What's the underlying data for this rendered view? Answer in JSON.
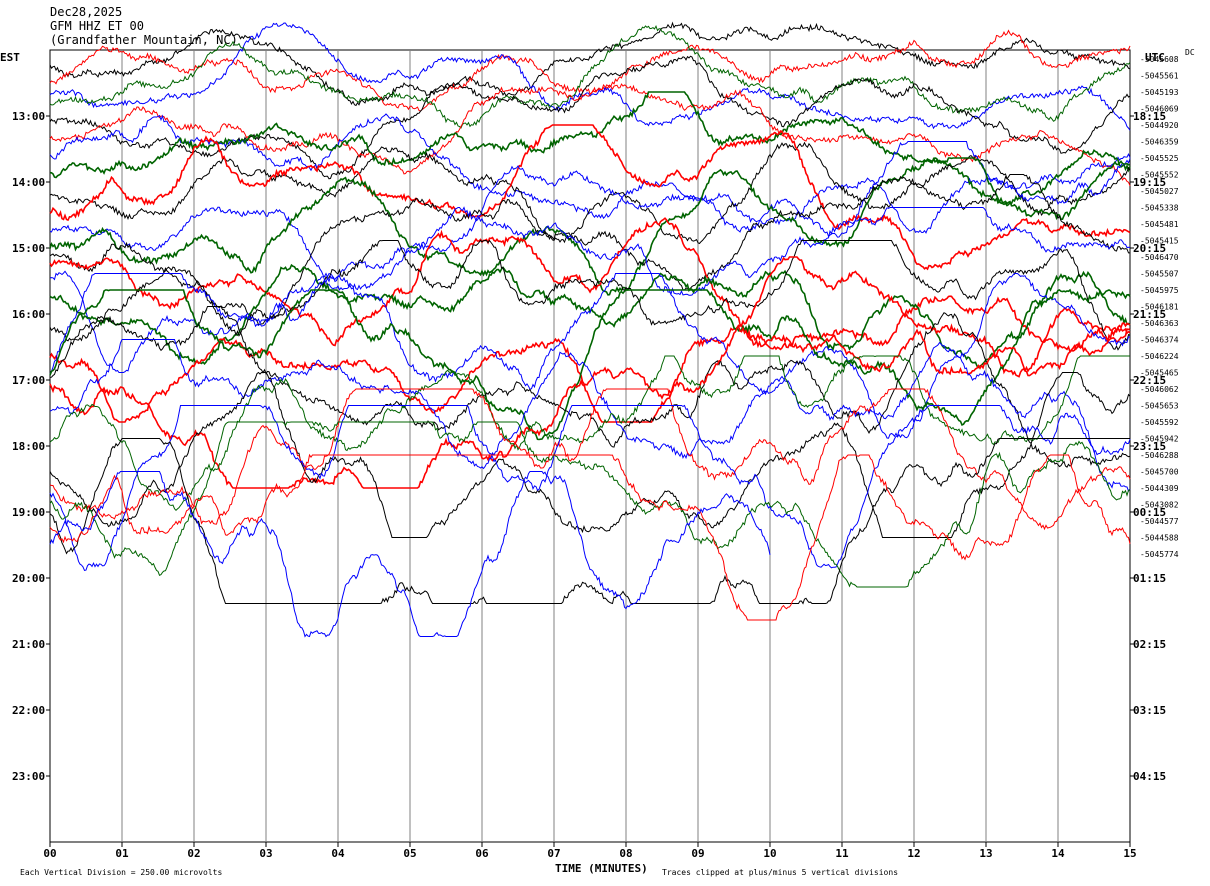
{
  "header": {
    "date": "Dec28,2025",
    "channel": "GFM HHZ ET 00",
    "station": "(Grandfather Mountain, NC)"
  },
  "left_tz": "EST",
  "right_tz": "UTC",
  "dc_label": "DC",
  "footer": {
    "division": "Each Vertical Division =  250.00 microvolts",
    "clip_note": "Traces clipped at plus/minus 5 vertical divisions"
  },
  "colors": {
    "traces": [
      "#000000",
      "#ff0000",
      "#0000ff",
      "#006400"
    ],
    "grid": "#808080",
    "frame": "#000000"
  },
  "chart_data": {
    "type": "line",
    "xlabel": "TIME (MINUTES)",
    "xlim": [
      0,
      15
    ],
    "x_ticks": [
      "00",
      "01",
      "02",
      "03",
      "04",
      "05",
      "06",
      "07",
      "08",
      "09",
      "10",
      "11",
      "12",
      "13",
      "14",
      "15"
    ],
    "left_hour_labels": [
      "13:00",
      "14:00",
      "15:00",
      "16:00",
      "17:00",
      "18:00",
      "19:00",
      "20:00",
      "21:00",
      "22:00",
      "23:00"
    ],
    "right_hour_labels": [
      "18:15",
      "19:15",
      "20:15",
      "21:15",
      "22:15",
      "23:15",
      "00:15",
      "01:15",
      "02:15",
      "03:15",
      "04:15"
    ],
    "lines_per_hour": 4,
    "minutes_per_line": 15,
    "trace_count": 31,
    "dc_offsets": [
      "-5045608",
      "-5045561",
      "-5045193",
      "-5046069",
      "-5044920",
      "-5046359",
      "-5045525",
      "-5045552",
      "-5045027",
      "-5045338",
      "-5045481",
      "-5045415",
      "-5046470",
      "-5045507",
      "-5045975",
      "-5046181",
      "-5046363",
      "-5046374",
      "-5046224",
      "-5045465",
      "-5046062",
      "-5045653",
      "-5045592",
      "-5045942",
      "-5046288",
      "-5045700",
      "-5044309",
      "-5043082",
      "-5044577",
      "-5044588",
      "-5045774"
    ],
    "last_trace_end_minute": 10.0
  }
}
